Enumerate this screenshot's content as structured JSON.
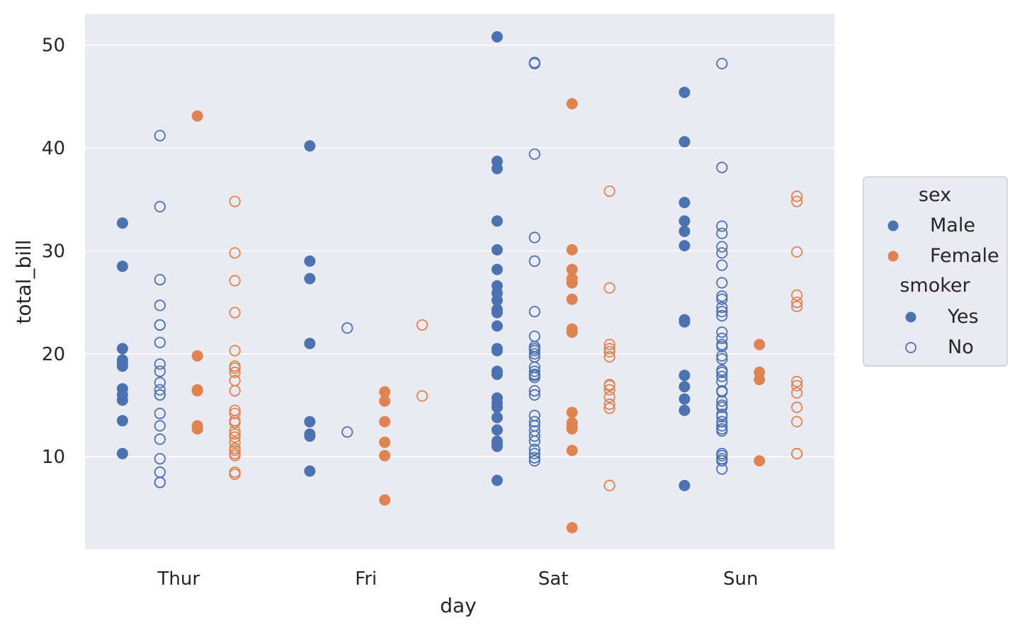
{
  "chart_data": {
    "type": "scatter",
    "xlabel": "day",
    "ylabel": "total_bill",
    "categories": [
      "Thur",
      "Fri",
      "Sat",
      "Sun"
    ],
    "ylim": [
      1,
      53
    ],
    "yticks": [
      10,
      20,
      30,
      40,
      50
    ],
    "grid": true,
    "legend_position": "right",
    "legend": {
      "sex_title": "sex",
      "sex_entries": [
        {
          "label": "Male",
          "color": "#4c72b0"
        },
        {
          "label": "Female",
          "color": "#dd8452"
        }
      ],
      "smoker_title": "smoker",
      "smoker_entries": [
        {
          "label": "Yes",
          "fill": "filled"
        },
        {
          "label": "No",
          "fill": "hollow"
        }
      ]
    },
    "colors": {
      "Male": "#4c72b0",
      "Female": "#dd8452",
      "background": "#eaeaf2",
      "grid": "#ffffff"
    },
    "series": [
      {
        "sex": "Male",
        "smoker": "Yes",
        "values": {
          "Thur": [
            32.7,
            28.5,
            20.5,
            19.4,
            19.2,
            18.8,
            16.6,
            16.0,
            15.5,
            13.5,
            10.3
          ],
          "Fri": [
            40.2,
            29.0,
            27.3,
            21.0,
            13.4,
            12.2,
            12.0,
            8.6
          ],
          "Sat": [
            50.8,
            38.7,
            38.0,
            32.9,
            30.1,
            28.2,
            26.6,
            25.9,
            25.2,
            24.3,
            24.0,
            22.7,
            20.5,
            20.3,
            18.3,
            18.0,
            15.7,
            15.2,
            14.8,
            13.8,
            12.6,
            11.5,
            11.2,
            11.0,
            7.7
          ],
          "Sun": [
            45.4,
            40.6,
            34.7,
            32.9,
            31.9,
            30.5,
            23.3,
            23.1,
            17.9,
            16.8,
            15.6,
            14.5,
            7.2
          ]
        }
      },
      {
        "sex": "Male",
        "smoker": "No",
        "values": {
          "Thur": [
            41.2,
            34.3,
            27.2,
            24.7,
            22.8,
            22.8,
            21.1,
            19.0,
            18.3,
            17.2,
            16.5,
            16.0,
            16.0,
            14.2,
            13.0,
            11.7,
            9.8,
            8.5,
            7.5,
            7.5
          ],
          "Fri": [
            22.5,
            12.4
          ],
          "Sat": [
            48.3,
            48.2,
            39.4,
            31.3,
            29.0,
            24.1,
            21.7,
            20.7,
            20.5,
            20.3,
            20.0,
            19.7,
            18.7,
            18.3,
            18.0,
            17.9,
            17.7,
            16.4,
            16.0,
            14.0,
            13.4,
            13.0,
            12.5,
            12.0,
            11.5,
            10.7,
            10.3,
            9.9,
            9.6
          ],
          "Sun": [
            48.2,
            38.1,
            32.4,
            31.7,
            30.4,
            29.8,
            28.6,
            26.9,
            25.6,
            25.3,
            24.5,
            24.1,
            23.7,
            22.1,
            21.5,
            20.9,
            20.7,
            19.8,
            19.5,
            18.4,
            18.2,
            17.8,
            17.3,
            16.4,
            16.3,
            15.4,
            15.0,
            14.8,
            14.1,
            13.9,
            13.4,
            13.0,
            12.7,
            12.5,
            10.3,
            10.1,
            9.8,
            9.6,
            8.8
          ]
        }
      },
      {
        "sex": "Female",
        "smoker": "Yes",
        "values": {
          "Thur": [
            43.1,
            19.8,
            16.5,
            16.4,
            13.0,
            12.7
          ],
          "Fri": [
            16.3,
            15.4,
            13.4,
            11.4,
            10.1,
            5.8
          ],
          "Sat": [
            44.3,
            30.1,
            28.2,
            27.3,
            26.9,
            25.3,
            22.4,
            22.1,
            14.3,
            13.3,
            12.9,
            12.7,
            10.6,
            3.1
          ],
          "Sun": [
            20.9,
            18.2,
            17.5,
            9.6
          ]
        }
      },
      {
        "sex": "Female",
        "smoker": "No",
        "values": {
          "Thur": [
            34.8,
            29.8,
            27.1,
            24.0,
            20.3,
            18.8,
            18.6,
            18.2,
            17.4,
            16.4,
            14.5,
            14.2,
            13.5,
            13.3,
            12.5,
            12.2,
            11.9,
            11.4,
            10.8,
            10.6,
            10.3,
            10.1,
            8.5,
            8.3
          ],
          "Fri": [
            22.8,
            15.9
          ],
          "Sat": [
            35.8,
            26.4,
            20.9,
            20.5,
            20.2,
            19.7,
            17.0,
            16.9,
            16.5,
            15.8,
            15.1,
            14.7,
            7.2
          ],
          "Sun": [
            35.3,
            34.8,
            29.9,
            25.7,
            25.0,
            24.6,
            17.3,
            16.9,
            16.2,
            14.8,
            13.4,
            10.3,
            10.3
          ]
        }
      }
    ]
  }
}
